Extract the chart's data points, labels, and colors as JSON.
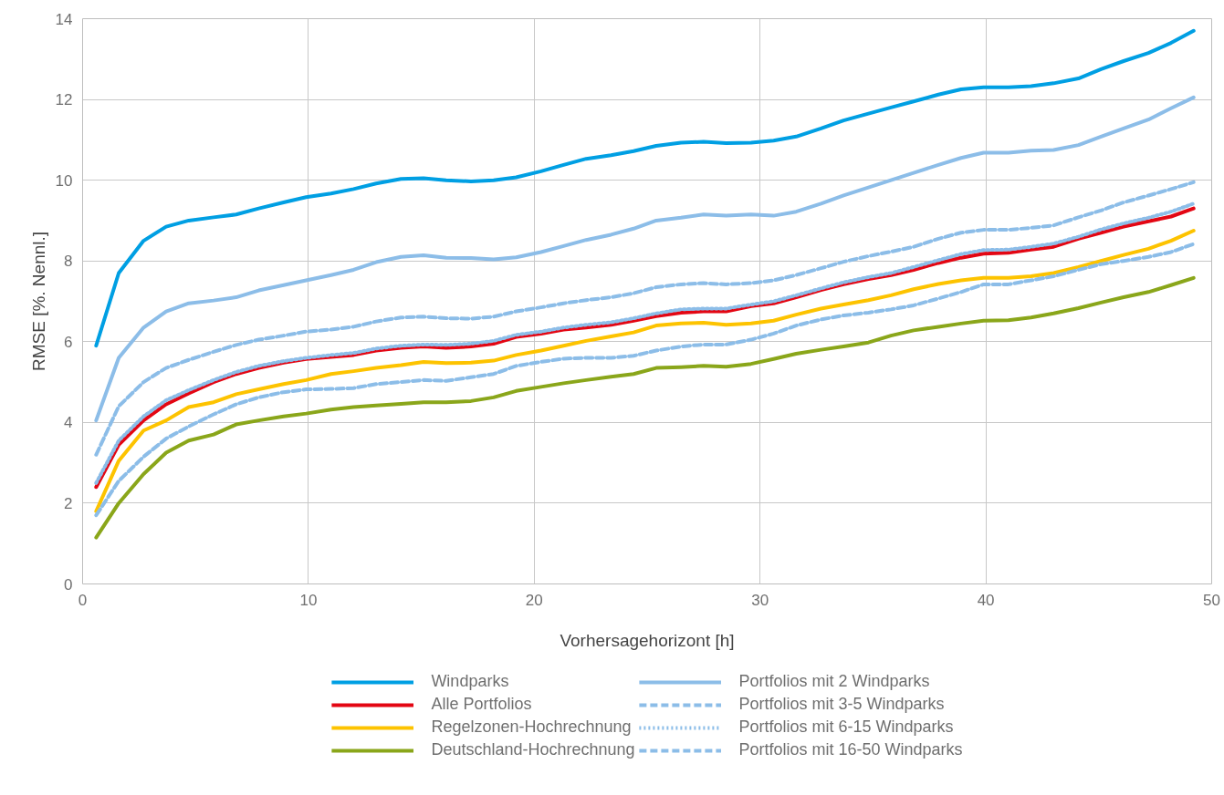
{
  "chart_data": {
    "type": "line",
    "xlabel": "Vorhersagehorizont [h]",
    "ylabel": "RMSE [%. Nennl.]",
    "x": [
      0.6,
      1.6,
      2.7,
      3.7,
      4.7,
      5.8,
      6.8,
      7.8,
      8.9,
      9.9,
      11.0,
      12.0,
      13.0,
      14.1,
      15.1,
      16.1,
      17.2,
      18.2,
      19.2,
      20.3,
      21.3,
      22.3,
      23.4,
      24.4,
      25.4,
      26.5,
      27.5,
      28.5,
      29.6,
      30.6,
      31.6,
      32.7,
      33.7,
      34.8,
      35.8,
      36.8,
      37.9,
      38.9,
      39.9,
      41.0,
      42.0,
      43.0,
      44.1,
      45.1,
      46.1,
      47.2,
      48.2,
      49.2
    ],
    "xlim": [
      0,
      50
    ],
    "xticks": [
      0,
      10,
      20,
      30,
      40,
      50
    ],
    "ylim": [
      0,
      14
    ],
    "yticks": [
      0,
      2,
      4,
      6,
      8,
      10,
      12,
      14
    ],
    "grid": true,
    "legend": "bottom",
    "series": [
      {
        "name": "Windparks",
        "color": "#009fe3",
        "line_style": "solid",
        "values": [
          5.9,
          7.7,
          8.5,
          8.85,
          9.0,
          9.08,
          9.15,
          9.3,
          9.45,
          9.58,
          9.67,
          9.78,
          9.92,
          10.03,
          10.05,
          10.0,
          9.97,
          10.0,
          10.07,
          10.22,
          10.38,
          10.53,
          10.62,
          10.72,
          10.85,
          10.93,
          10.95,
          10.92,
          10.93,
          10.98,
          11.08,
          11.28,
          11.48,
          11.65,
          11.8,
          11.95,
          12.12,
          12.25,
          12.3,
          12.3,
          12.33,
          12.4,
          12.52,
          12.75,
          12.95,
          13.15,
          13.4,
          13.7
        ]
      },
      {
        "name": "Alle Portfolios",
        "color": "#e30613",
        "line_style": "solid",
        "values": [
          2.4,
          3.45,
          4.05,
          4.45,
          4.72,
          5.0,
          5.2,
          5.35,
          5.48,
          5.57,
          5.62,
          5.67,
          5.78,
          5.85,
          5.88,
          5.85,
          5.88,
          5.95,
          6.12,
          6.2,
          6.3,
          6.35,
          6.42,
          6.52,
          6.63,
          6.72,
          6.75,
          6.75,
          6.88,
          6.95,
          7.1,
          7.28,
          7.42,
          7.55,
          7.65,
          7.78,
          7.95,
          8.08,
          8.18,
          8.2,
          8.28,
          8.35,
          8.55,
          8.7,
          8.85,
          8.98,
          9.1,
          9.3
        ]
      },
      {
        "name": "Regelzonen-Hochrechnung",
        "color": "#fdc300",
        "line_style": "solid",
        "values": [
          1.8,
          3.05,
          3.8,
          4.05,
          4.38,
          4.5,
          4.7,
          4.82,
          4.95,
          5.05,
          5.2,
          5.27,
          5.35,
          5.42,
          5.5,
          5.47,
          5.48,
          5.53,
          5.67,
          5.78,
          5.9,
          6.02,
          6.13,
          6.23,
          6.4,
          6.45,
          6.47,
          6.42,
          6.45,
          6.52,
          6.67,
          6.82,
          6.92,
          7.03,
          7.15,
          7.3,
          7.43,
          7.52,
          7.58,
          7.58,
          7.62,
          7.7,
          7.85,
          8.0,
          8.15,
          8.3,
          8.5,
          8.75
        ]
      },
      {
        "name": "Deutschland-Hochrechnung",
        "color": "#8aa61a",
        "line_style": "solid",
        "values": [
          1.15,
          2.0,
          2.72,
          3.25,
          3.55,
          3.7,
          3.95,
          4.05,
          4.15,
          4.22,
          4.32,
          4.38,
          4.42,
          4.46,
          4.5,
          4.5,
          4.53,
          4.62,
          4.78,
          4.88,
          4.97,
          5.05,
          5.13,
          5.2,
          5.35,
          5.37,
          5.4,
          5.38,
          5.45,
          5.57,
          5.7,
          5.8,
          5.88,
          5.98,
          6.15,
          6.28,
          6.37,
          6.45,
          6.52,
          6.53,
          6.6,
          6.7,
          6.83,
          6.97,
          7.1,
          7.23,
          7.4,
          7.58
        ]
      },
      {
        "name": "Portfolios mit 2 Windparks",
        "color": "#8cbde8",
        "line_style": "solid",
        "values": [
          4.05,
          5.6,
          6.35,
          6.75,
          6.95,
          7.02,
          7.1,
          7.27,
          7.4,
          7.52,
          7.65,
          7.78,
          7.97,
          8.1,
          8.14,
          8.08,
          8.07,
          8.04,
          8.09,
          8.22,
          8.37,
          8.52,
          8.65,
          8.8,
          9.0,
          9.07,
          9.15,
          9.12,
          9.15,
          9.12,
          9.22,
          9.42,
          9.62,
          9.82,
          10.0,
          10.18,
          10.38,
          10.55,
          10.68,
          10.68,
          10.73,
          10.75,
          10.87,
          11.08,
          11.28,
          11.5,
          11.78,
          12.05
        ]
      },
      {
        "name": "Portfolios mit 3-5 Windparks",
        "color": "#8cbde8",
        "line_style": "dashed",
        "values": [
          3.2,
          4.4,
          5.0,
          5.35,
          5.55,
          5.75,
          5.92,
          6.05,
          6.15,
          6.25,
          6.3,
          6.37,
          6.5,
          6.6,
          6.62,
          6.58,
          6.57,
          6.62,
          6.75,
          6.85,
          6.95,
          7.03,
          7.1,
          7.2,
          7.35,
          7.42,
          7.45,
          7.42,
          7.45,
          7.52,
          7.65,
          7.82,
          7.98,
          8.12,
          8.23,
          8.35,
          8.55,
          8.7,
          8.77,
          8.77,
          8.82,
          8.88,
          9.08,
          9.25,
          9.45,
          9.62,
          9.78,
          9.95
        ]
      },
      {
        "name": "Portfolios mit 6-15 Windparks",
        "color": "#8cbde8",
        "line_style": "dotted",
        "values": [
          2.5,
          3.55,
          4.15,
          4.55,
          4.8,
          5.05,
          5.25,
          5.4,
          5.52,
          5.6,
          5.67,
          5.72,
          5.83,
          5.9,
          5.93,
          5.92,
          5.95,
          6.02,
          6.17,
          6.25,
          6.35,
          6.42,
          6.48,
          6.58,
          6.7,
          6.8,
          6.82,
          6.82,
          6.92,
          7.0,
          7.15,
          7.32,
          7.47,
          7.6,
          7.7,
          7.85,
          8.02,
          8.17,
          8.27,
          8.28,
          8.35,
          8.43,
          8.6,
          8.78,
          8.93,
          9.07,
          9.22,
          9.42
        ]
      },
      {
        "name": "Portfolios mit 16-50 Windparks",
        "color": "#8cbde8",
        "line_style": "dashed",
        "values": [
          1.7,
          2.55,
          3.15,
          3.6,
          3.9,
          4.2,
          4.45,
          4.62,
          4.75,
          4.82,
          4.83,
          4.85,
          4.95,
          5.0,
          5.05,
          5.03,
          5.12,
          5.2,
          5.4,
          5.5,
          5.58,
          5.6,
          5.6,
          5.65,
          5.78,
          5.88,
          5.93,
          5.93,
          6.05,
          6.2,
          6.4,
          6.55,
          6.65,
          6.72,
          6.8,
          6.9,
          7.07,
          7.23,
          7.42,
          7.42,
          7.52,
          7.62,
          7.78,
          7.92,
          8.0,
          8.1,
          8.22,
          8.42
        ]
      }
    ]
  }
}
